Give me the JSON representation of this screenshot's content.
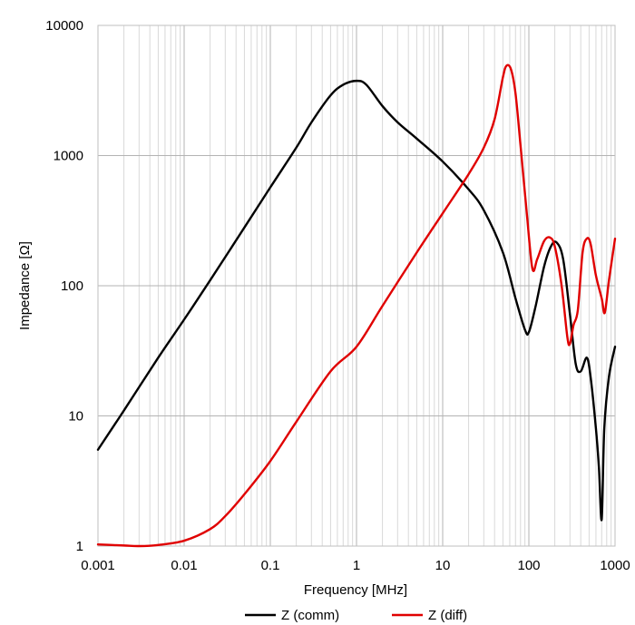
{
  "chart_data": {
    "type": "line",
    "title": "",
    "xlabel": "Frequency [MHz]",
    "ylabel": "Impedance [Ω]",
    "xscale": "log",
    "yscale": "log",
    "xlim": [
      0.001,
      1000
    ],
    "ylim": [
      1,
      10000
    ],
    "grid": "major and minor",
    "legend_position": "bottom",
    "x_tick_labels": [
      "0.001",
      "0.01",
      "0.1",
      "1",
      "10",
      "100",
      "1000"
    ],
    "y_tick_labels": [
      "1",
      "10",
      "100",
      "1000",
      "10000"
    ],
    "series": [
      {
        "name": "Z (comm)",
        "color": "#000000",
        "points": [
          [
            0.001,
            5.5
          ],
          [
            0.002,
            11
          ],
          [
            0.005,
            28
          ],
          [
            0.01,
            55
          ],
          [
            0.02,
            110
          ],
          [
            0.05,
            280
          ],
          [
            0.1,
            570
          ],
          [
            0.2,
            1150
          ],
          [
            0.3,
            1800
          ],
          [
            0.5,
            2900
          ],
          [
            0.7,
            3500
          ],
          [
            1.0,
            3750
          ],
          [
            1.3,
            3500
          ],
          [
            2.0,
            2400
          ],
          [
            3.0,
            1800
          ],
          [
            5.0,
            1350
          ],
          [
            10.0,
            900
          ],
          [
            20.0,
            550
          ],
          [
            30.0,
            380
          ],
          [
            50.0,
            180
          ],
          [
            70.0,
            80
          ],
          [
            90.0,
            46
          ],
          [
            100.0,
            44
          ],
          [
            120.0,
            70
          ],
          [
            150.0,
            140
          ],
          [
            180.0,
            200
          ],
          [
            210.0,
            215
          ],
          [
            250.0,
            160
          ],
          [
            300.0,
            60
          ],
          [
            350.0,
            25
          ],
          [
            400.0,
            22
          ],
          [
            470.0,
            28
          ],
          [
            520.0,
            20
          ],
          [
            600.0,
            8
          ],
          [
            650.0,
            4
          ],
          [
            700.0,
            1.6
          ],
          [
            750.0,
            8
          ],
          [
            850.0,
            20
          ],
          [
            1000.0,
            34
          ]
        ]
      },
      {
        "name": "Z (diff)",
        "color": "#e00000",
        "points": [
          [
            0.001,
            1.03
          ],
          [
            0.002,
            1.01
          ],
          [
            0.003,
            1.0
          ],
          [
            0.005,
            1.02
          ],
          [
            0.01,
            1.1
          ],
          [
            0.02,
            1.35
          ],
          [
            0.03,
            1.7
          ],
          [
            0.05,
            2.5
          ],
          [
            0.1,
            4.5
          ],
          [
            0.2,
            9
          ],
          [
            0.5,
            22
          ],
          [
            1.0,
            34
          ],
          [
            2.0,
            70
          ],
          [
            5.0,
            180
          ],
          [
            10.0,
            360
          ],
          [
            20.0,
            720
          ],
          [
            30.0,
            1150
          ],
          [
            40.0,
            1900
          ],
          [
            50.0,
            4000
          ],
          [
            55.0,
            4900
          ],
          [
            62.0,
            4600
          ],
          [
            70.0,
            3000
          ],
          [
            80.0,
            1200
          ],
          [
            95.0,
            350
          ],
          [
            110.0,
            135
          ],
          [
            125.0,
            160
          ],
          [
            150.0,
            220
          ],
          [
            175.0,
            235
          ],
          [
            200.0,
            200
          ],
          [
            240.0,
            100
          ],
          [
            280.0,
            40
          ],
          [
            300.0,
            36
          ],
          [
            330.0,
            50
          ],
          [
            370.0,
            65
          ],
          [
            420.0,
            180
          ],
          [
            470.0,
            230
          ],
          [
            520.0,
            210
          ],
          [
            600.0,
            120
          ],
          [
            700.0,
            80
          ],
          [
            760.0,
            62
          ],
          [
            850.0,
            110
          ],
          [
            1000.0,
            230
          ]
        ]
      }
    ]
  }
}
